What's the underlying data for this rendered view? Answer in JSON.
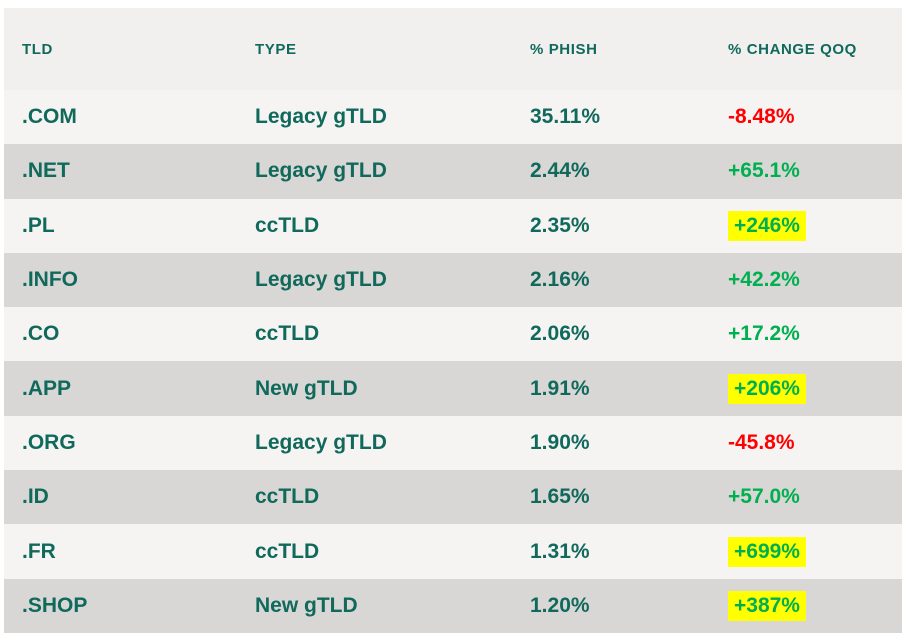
{
  "table": {
    "columns": [
      {
        "label": "TLD"
      },
      {
        "label": "TYPE"
      },
      {
        "label": "% PHISH"
      },
      {
        "label": "% CHANGE QOQ"
      }
    ],
    "rows": [
      {
        "tld": ".COM",
        "type": "Legacy gTLD",
        "phish": "35.11%",
        "change": "-8.48%",
        "trend": "down",
        "highlight": false
      },
      {
        "tld": ".NET",
        "type": "Legacy gTLD",
        "phish": "2.44%",
        "change": "+65.1%",
        "trend": "up",
        "highlight": false
      },
      {
        "tld": ".PL",
        "type": "ccTLD",
        "phish": "2.35%",
        "change": "+246%",
        "trend": "up",
        "highlight": true
      },
      {
        "tld": ".INFO",
        "type": "Legacy gTLD",
        "phish": "2.16%",
        "change": "+42.2%",
        "trend": "up",
        "highlight": false
      },
      {
        "tld": ".CO",
        "type": "ccTLD",
        "phish": "2.06%",
        "change": "+17.2%",
        "trend": "up",
        "highlight": false
      },
      {
        "tld": ".APP",
        "type": "New gTLD",
        "phish": "1.91%",
        "change": "+206%",
        "trend": "up",
        "highlight": true
      },
      {
        "tld": ".ORG",
        "type": "Legacy gTLD",
        "phish": "1.90%",
        "change": "-45.8%",
        "trend": "down",
        "highlight": false
      },
      {
        "tld": ".ID",
        "type": "ccTLD",
        "phish": "1.65%",
        "change": "+57.0%",
        "trend": "up",
        "highlight": false
      },
      {
        "tld": ".FR",
        "type": "ccTLD",
        "phish": "1.31%",
        "change": "+699%",
        "trend": "up",
        "highlight": true
      },
      {
        "tld": ".SHOP",
        "type": "New gTLD",
        "phish": "1.20%",
        "change": "+387%",
        "trend": "up",
        "highlight": true
      }
    ]
  },
  "colors": {
    "teal": "#10695b",
    "positive_green": "#00b050",
    "negative_red": "#ff0000",
    "highlight_yellow": "#ffff00",
    "header_bg": "#f1f0ee",
    "row_light": "#f5f4f3",
    "row_dark": "#d8d7d5"
  }
}
